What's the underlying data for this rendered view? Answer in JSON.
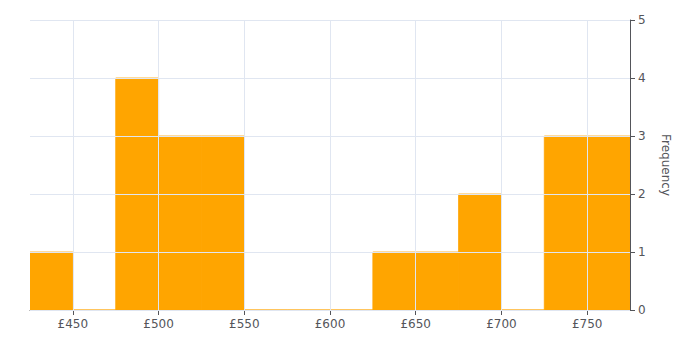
{
  "chart_data": {
    "type": "histogram",
    "bins": [
      425,
      450,
      475,
      500,
      525,
      550,
      575,
      600,
      625,
      650,
      675,
      700,
      725,
      750,
      775
    ],
    "values": [
      1,
      0,
      4,
      3,
      3,
      0,
      0,
      0,
      1,
      1,
      2,
      0,
      3,
      3
    ],
    "color": "#FFA500",
    "ylabel": "Frequency",
    "xlim": [
      425,
      775
    ],
    "xticks": [
      {
        "value": 450,
        "label": "£450"
      },
      {
        "value": 500,
        "label": "£500"
      },
      {
        "value": 550,
        "label": "£550"
      },
      {
        "value": 600,
        "label": "£600"
      },
      {
        "value": 650,
        "label": "£650"
      },
      {
        "value": 700,
        "label": "£700"
      },
      {
        "value": 750,
        "label": "£750"
      }
    ],
    "ylim": [
      0,
      5
    ],
    "yticks": [
      0,
      1,
      2,
      3,
      4,
      5
    ],
    "grid": true
  }
}
